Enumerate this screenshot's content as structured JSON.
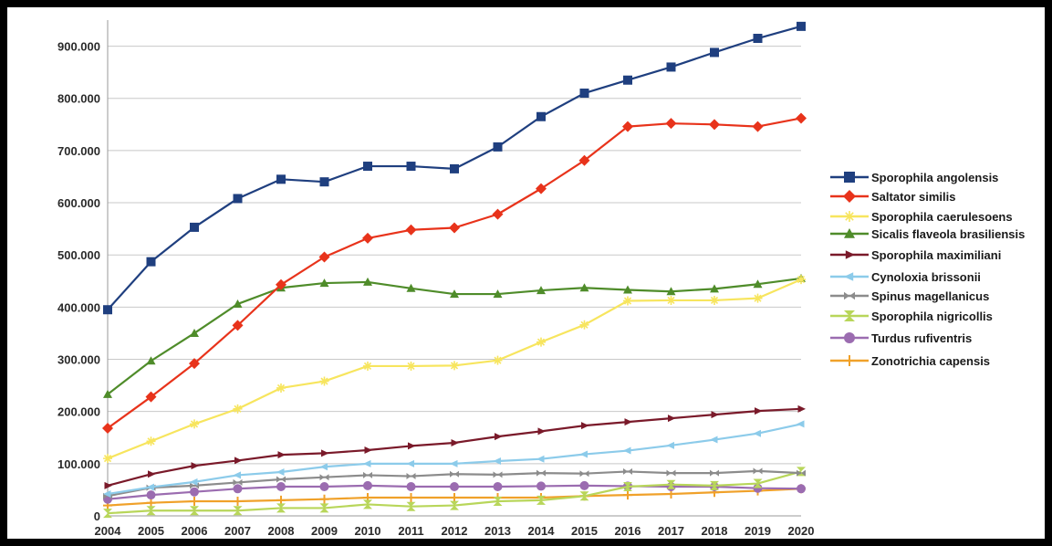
{
  "chart_data": {
    "type": "line",
    "title": "",
    "xlabel": "",
    "ylabel": "",
    "ylim": [
      0,
      950000
    ],
    "grid": "horizontal",
    "legend_position": "right",
    "x": [
      2004,
      2005,
      2006,
      2007,
      2008,
      2009,
      2010,
      2011,
      2012,
      2013,
      2014,
      2015,
      2016,
      2017,
      2018,
      2019,
      2020
    ],
    "x_tick_labels": [
      "2004",
      "2005",
      "2006",
      "2007",
      "2008",
      "2009",
      "2010",
      "2011",
      "2012",
      "2013",
      "2014",
      "2015",
      "2016",
      "2017",
      "2018",
      "2019",
      "2020"
    ],
    "y_ticks": [
      0,
      100000,
      200000,
      300000,
      400000,
      500000,
      600000,
      700000,
      800000,
      900000
    ],
    "y_tick_labels": [
      "0",
      "100.000",
      "200.000",
      "300.000",
      "400.000",
      "500.000",
      "600.000",
      "700.000",
      "800.000",
      "900.000"
    ],
    "series": [
      {
        "name": "Sporophila angolensis",
        "color": "#1f3f7f",
        "marker": "square",
        "values": [
          395000,
          487000,
          553000,
          608000,
          645000,
          640000,
          670000,
          670000,
          665000,
          707000,
          765000,
          810000,
          835000,
          860000,
          888000,
          915000,
          938000
        ]
      },
      {
        "name": "Saltator similis",
        "color": "#e8331b",
        "marker": "diamond",
        "values": [
          168000,
          228000,
          292000,
          365000,
          443000,
          496000,
          532000,
          548000,
          552000,
          578000,
          627000,
          681000,
          746000,
          752000,
          750000,
          746000,
          762000
        ]
      },
      {
        "name": "Sporophila caerulesoens",
        "color": "#f7e55e",
        "marker": "star",
        "values": [
          110000,
          143000,
          176000,
          205000,
          245000,
          258000,
          287000,
          287000,
          288000,
          298000,
          333000,
          366000,
          412000,
          413000,
          413000,
          417000,
          453000
        ]
      },
      {
        "name": "Sicalis flaveola brasiliensis",
        "color": "#4f8c2a",
        "marker": "triangle-up",
        "values": [
          233000,
          297000,
          350000,
          406000,
          437000,
          446000,
          448000,
          436000,
          425000,
          425000,
          432000,
          437000,
          433000,
          430000,
          435000,
          444000,
          455000
        ]
      },
      {
        "name": "Sporophila maximiliani",
        "color": "#7a1a2a",
        "marker": "triangle-right",
        "values": [
          58000,
          80000,
          96000,
          106000,
          117000,
          120000,
          126000,
          134000,
          140000,
          152000,
          162000,
          173000,
          180000,
          187000,
          194000,
          201000,
          205000
        ]
      },
      {
        "name": "Cynoloxia brissonii",
        "color": "#8ccbea",
        "marker": "triangle-left",
        "values": [
          42000,
          55000,
          65000,
          78000,
          84000,
          94000,
          100000,
          100000,
          100000,
          105000,
          109000,
          118000,
          125000,
          135000,
          146000,
          158000,
          176000
        ]
      },
      {
        "name": "Spinus magellanicus",
        "color": "#8c8c8c",
        "marker": "bowtie",
        "values": [
          38000,
          54000,
          58000,
          64000,
          70000,
          74000,
          78000,
          76000,
          80000,
          79000,
          82000,
          81000,
          85000,
          82000,
          82000,
          86000,
          82000
        ]
      },
      {
        "name": "Sporophila nigricollis",
        "color": "#b8d65a",
        "marker": "hourglass",
        "values": [
          5000,
          10000,
          10000,
          10000,
          15000,
          15000,
          22000,
          18000,
          20000,
          28000,
          30000,
          38000,
          56000,
          60000,
          58000,
          62000,
          85000
        ]
      },
      {
        "name": "Turdus rufiventris",
        "color": "#9b6cb0",
        "marker": "circle",
        "values": [
          32000,
          40000,
          46000,
          52000,
          56000,
          56000,
          58000,
          56000,
          56000,
          56000,
          57000,
          58000,
          57000,
          56000,
          56000,
          53000,
          52000
        ]
      },
      {
        "name": "Zonotrichia capensis",
        "color": "#f0a12a",
        "marker": "plus",
        "values": [
          20000,
          25000,
          28000,
          28000,
          30000,
          32000,
          35000,
          35000,
          35000,
          35000,
          35000,
          38000,
          40000,
          42000,
          45000,
          48000,
          52000
        ]
      }
    ]
  }
}
